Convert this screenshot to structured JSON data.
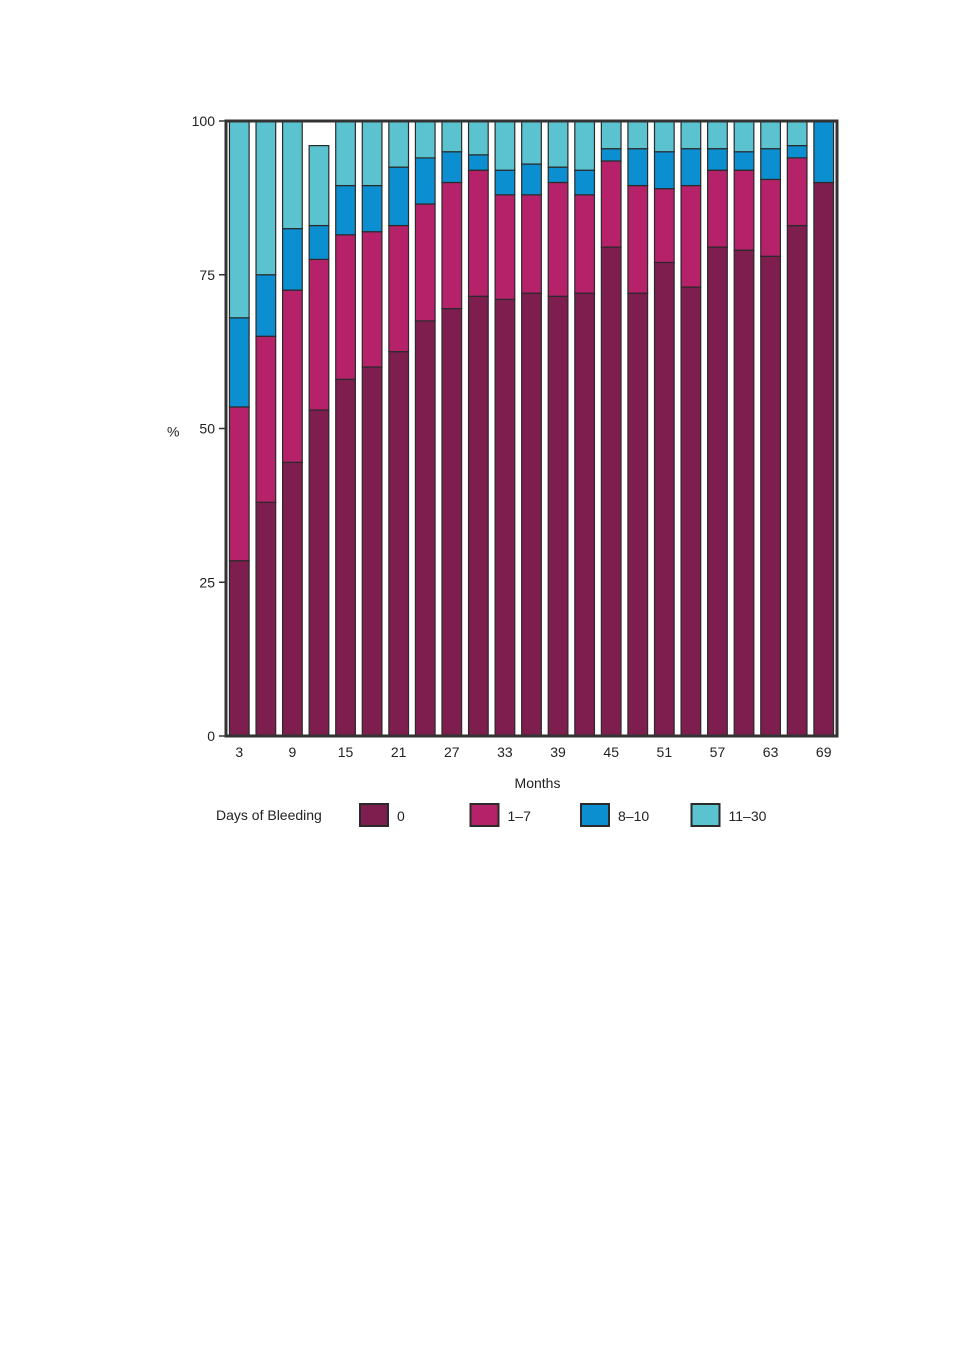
{
  "chart_data": {
    "type": "bar",
    "stacked": true,
    "title": "",
    "xlabel": "Months",
    "ylabel": "%",
    "ylim": [
      0,
      100
    ],
    "yticks": [
      0,
      25,
      50,
      75,
      100
    ],
    "categories": [
      3,
      6,
      9,
      12,
      15,
      18,
      21,
      24,
      27,
      30,
      33,
      36,
      39,
      42,
      45,
      48,
      51,
      54,
      57,
      60,
      63,
      66,
      69
    ],
    "xtick_labels": [
      "3",
      "9",
      "15",
      "21",
      "27",
      "33",
      "39",
      "45",
      "51",
      "57",
      "63",
      "69"
    ],
    "legend_title": "Days of Bleeding",
    "legend_position": "bottom",
    "grid": false,
    "series": [
      {
        "name": "0",
        "color": "#7d1e4e",
        "values": [
          28.5,
          38,
          44.5,
          53,
          58,
          60,
          62.5,
          67.5,
          69.5,
          71.5,
          71,
          72,
          71.5,
          72,
          79.5,
          72,
          77,
          73,
          79.5,
          79,
          78,
          83,
          90
        ]
      },
      {
        "name": "1–7",
        "color": "#b5226a",
        "values": [
          25,
          27,
          28,
          24.5,
          23.5,
          22,
          20.5,
          19,
          20.5,
          20.5,
          17,
          16,
          18.5,
          16,
          14,
          17.5,
          12,
          16.5,
          12.5,
          13,
          12.5,
          11,
          0
        ]
      },
      {
        "name": "8–10",
        "color": "#0b8fd0",
        "values": [
          14.5,
          10,
          10,
          5.5,
          8,
          7.5,
          9.5,
          7.5,
          5,
          2.5,
          4,
          5,
          2.5,
          4,
          2,
          6,
          6,
          6,
          3.5,
          3,
          5,
          2,
          10
        ]
      },
      {
        "name": "11–30",
        "color": "#5bc3d0",
        "values": [
          32,
          25,
          17.5,
          13,
          10.5,
          10.5,
          7.5,
          6,
          5,
          5.5,
          8,
          7,
          7.5,
          8,
          4.5,
          4.5,
          5,
          4.5,
          4.5,
          5,
          4.5,
          4,
          0
        ]
      }
    ]
  }
}
